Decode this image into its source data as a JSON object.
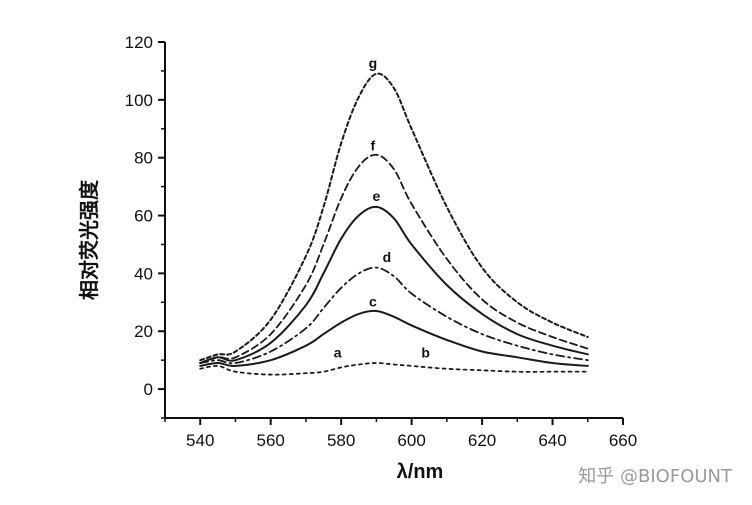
{
  "watermark": "知乎 @BIOFOUNT",
  "chart_data": {
    "type": "line",
    "xlabel": "λ/nm",
    "ylabel": "相对荧光强度",
    "xlim": [
      530,
      660
    ],
    "ylim": [
      -10,
      120
    ],
    "xticks": [
      540,
      560,
      580,
      600,
      620,
      640,
      660
    ],
    "yticks": [
      0,
      20,
      40,
      60,
      80,
      100,
      120
    ],
    "grid": false,
    "series": [
      {
        "name": "a",
        "x": [
          540,
          545,
          550,
          560,
          570,
          575,
          580,
          585,
          590,
          595,
          600,
          610,
          620,
          630,
          640,
          650
        ],
        "y": [
          7,
          8,
          6,
          5,
          5.5,
          6,
          7.5,
          8.5,
          9,
          8.5,
          8,
          7,
          6.5,
          6,
          6,
          6
        ]
      },
      {
        "name": "b",
        "x": [
          540,
          545,
          550,
          560,
          570,
          575,
          580,
          585,
          590,
          595,
          600,
          610,
          620,
          630,
          640,
          650
        ],
        "y": [
          7,
          8,
          6,
          5,
          5.5,
          6,
          7.5,
          8.5,
          9,
          8.5,
          8,
          7,
          6.5,
          6,
          6,
          6
        ]
      },
      {
        "name": "c",
        "x": [
          540,
          545,
          550,
          560,
          570,
          575,
          580,
          585,
          590,
          595,
          600,
          610,
          620,
          630,
          640,
          650
        ],
        "y": [
          8,
          9,
          8,
          10,
          15,
          19,
          23,
          26,
          27,
          25,
          22,
          17,
          13,
          11,
          9,
          8
        ]
      },
      {
        "name": "d",
        "x": [
          540,
          545,
          550,
          560,
          570,
          575,
          580,
          585,
          590,
          595,
          600,
          610,
          620,
          630,
          640,
          650
        ],
        "y": [
          9,
          10,
          9,
          13,
          21,
          28,
          35,
          40,
          42,
          39,
          33,
          25,
          19,
          15,
          12,
          10
        ]
      },
      {
        "name": "e",
        "x": [
          540,
          545,
          550,
          560,
          570,
          575,
          580,
          585,
          590,
          595,
          600,
          610,
          620,
          630,
          640,
          650
        ],
        "y": [
          9,
          11,
          10,
          16,
          29,
          40,
          52,
          60,
          63,
          59,
          50,
          36,
          26,
          19,
          15,
          12
        ]
      },
      {
        "name": "f",
        "x": [
          540,
          545,
          550,
          560,
          570,
          575,
          580,
          585,
          590,
          595,
          600,
          610,
          620,
          630,
          640,
          650
        ],
        "y": [
          9,
          11,
          11,
          19,
          36,
          50,
          66,
          77,
          81,
          76,
          64,
          45,
          31,
          23,
          18,
          14
        ]
      },
      {
        "name": "g",
        "x": [
          540,
          545,
          550,
          560,
          570,
          575,
          580,
          585,
          590,
          595,
          600,
          610,
          620,
          630,
          640,
          650
        ],
        "y": [
          10,
          12,
          13,
          24,
          46,
          63,
          85,
          101,
          109,
          104,
          90,
          63,
          42,
          30,
          23,
          18
        ]
      }
    ],
    "annotations": [
      {
        "text": "g",
        "x": 589,
        "y": 111
      },
      {
        "text": "f",
        "x": 589,
        "y": 82.5
      },
      {
        "text": "e",
        "x": 590,
        "y": 65
      },
      {
        "text": "d",
        "x": 593,
        "y": 44
      },
      {
        "text": "c",
        "x": 589,
        "y": 28.5
      },
      {
        "text": "a",
        "x": 579,
        "y": 11
      },
      {
        "text": "b",
        "x": 604,
        "y": 11
      }
    ]
  }
}
